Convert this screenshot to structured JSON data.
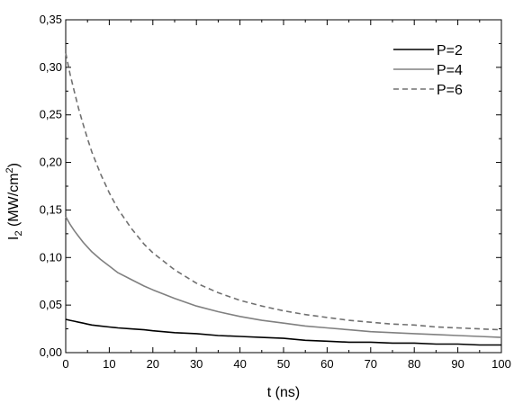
{
  "chart_data": {
    "type": "line",
    "xlabel": "t (ns)",
    "ylabel_main": "I",
    "ylabel_sub": "2",
    "ylabel_unit": " (MW/cm",
    "ylabel_sup": "2",
    "ylabel_close": ")",
    "xlim": [
      0,
      100
    ],
    "ylim": [
      0,
      0.35
    ],
    "x_ticks": [
      "0",
      "10",
      "20",
      "30",
      "40",
      "50",
      "60",
      "70",
      "80",
      "90",
      "100"
    ],
    "y_ticks": [
      "0,00",
      "0,05",
      "0,10",
      "0,15",
      "0,20",
      "0,25",
      "0,30",
      "0,35"
    ],
    "grid": false,
    "legend_position": "top-right",
    "x": [
      0,
      1,
      2,
      3,
      4,
      5,
      6,
      8,
      10,
      12,
      15,
      18,
      20,
      25,
      30,
      35,
      40,
      45,
      50,
      55,
      60,
      65,
      70,
      75,
      80,
      85,
      90,
      95,
      100
    ],
    "series": [
      {
        "name": "P=2",
        "color": "#000000",
        "dash": "solid",
        "values": [
          0.035,
          0.034,
          0.033,
          0.032,
          0.031,
          0.03,
          0.029,
          0.028,
          0.027,
          0.026,
          0.025,
          0.024,
          0.023,
          0.021,
          0.02,
          0.018,
          0.017,
          0.016,
          0.015,
          0.013,
          0.012,
          0.011,
          0.011,
          0.01,
          0.01,
          0.009,
          0.009,
          0.008,
          0.008
        ]
      },
      {
        "name": "P=4",
        "color": "#808080",
        "dash": "solid",
        "values": [
          0.143,
          0.135,
          0.128,
          0.122,
          0.116,
          0.111,
          0.106,
          0.098,
          0.091,
          0.084,
          0.077,
          0.07,
          0.066,
          0.057,
          0.049,
          0.043,
          0.038,
          0.034,
          0.031,
          0.028,
          0.026,
          0.024,
          0.022,
          0.021,
          0.02,
          0.019,
          0.018,
          0.017,
          0.016
        ]
      },
      {
        "name": "P=6",
        "color": "#707070",
        "dash": "dashed",
        "values": [
          0.315,
          0.293,
          0.274,
          0.256,
          0.24,
          0.225,
          0.211,
          0.188,
          0.168,
          0.151,
          0.131,
          0.114,
          0.105,
          0.087,
          0.073,
          0.063,
          0.055,
          0.049,
          0.044,
          0.04,
          0.037,
          0.034,
          0.032,
          0.03,
          0.029,
          0.027,
          0.026,
          0.025,
          0.024
        ]
      }
    ]
  }
}
